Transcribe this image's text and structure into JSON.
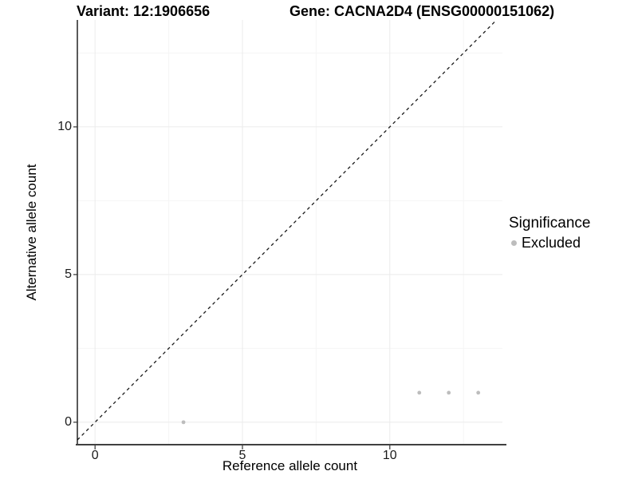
{
  "chart_data": {
    "type": "scatter",
    "title_left": "Variant: 12:1906656",
    "title_right": "Gene: CACNA2D4 (ENSG00000151062)",
    "xlabel": "Reference allele count",
    "ylabel": "Alternative allele count",
    "xlim": [
      -0.6,
      13.82
    ],
    "ylim": [
      -0.76,
      13.62
    ],
    "x_ticks": [
      0,
      5,
      10
    ],
    "y_ticks": [
      0,
      5,
      10
    ],
    "x_minor_ticks": [
      2.5,
      7.5,
      12.5
    ],
    "y_minor_ticks": [
      2.5,
      7.5,
      12.5
    ],
    "grid": true,
    "series": [
      {
        "name": "Excluded",
        "color": "#bdbdbd",
        "marker": "circle",
        "points": [
          [
            3,
            0
          ],
          [
            11,
            1
          ],
          [
            12,
            1
          ],
          [
            13,
            1
          ]
        ]
      }
    ],
    "reference_line": {
      "type": "identity-abline-y-equals-x",
      "style": "dashed",
      "color": "#1a1a1a"
    },
    "legend": {
      "title": "Significance",
      "position": "right",
      "items": [
        {
          "label": "Excluded",
          "color": "#bdbdbd"
        }
      ]
    },
    "colors": {
      "background": "#ffffff",
      "grid_major": "#ebebeb",
      "grid_minor": "#f5f5f5",
      "axis_line_y": "#000000",
      "axis_line_x": "#404040",
      "tick_mark": "#333333",
      "tick_text": "#1a1a1a",
      "point": "#bdbdbd"
    }
  }
}
